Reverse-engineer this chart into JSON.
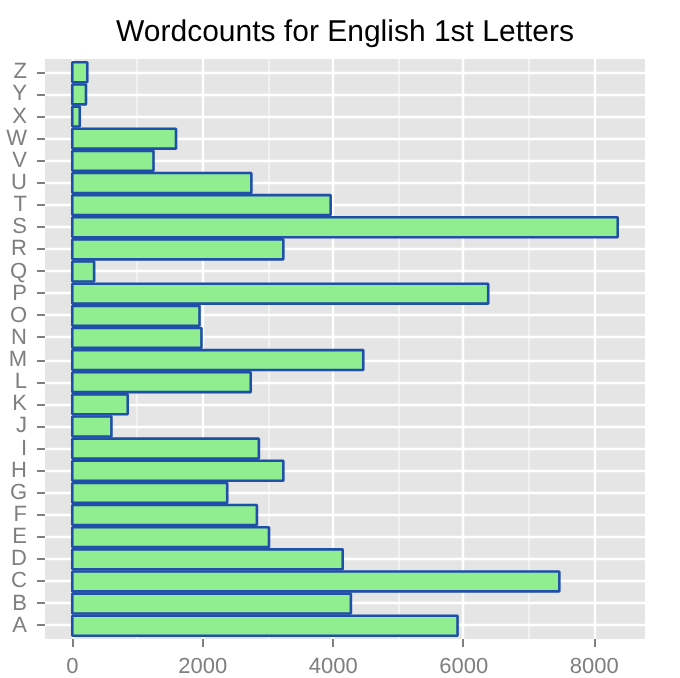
{
  "chart_data": {
    "type": "bar",
    "orientation": "horizontal",
    "title": "Wordcounts for English 1st Letters",
    "categories": [
      "Z",
      "Y",
      "X",
      "W",
      "V",
      "U",
      "T",
      "S",
      "R",
      "Q",
      "P",
      "O",
      "N",
      "M",
      "L",
      "K",
      "J",
      "I",
      "H",
      "G",
      "F",
      "E",
      "D",
      "C",
      "B",
      "A"
    ],
    "values": [
      230,
      210,
      115,
      1590,
      1245,
      2745,
      3960,
      8360,
      3235,
      335,
      6375,
      1950,
      1980,
      4460,
      2735,
      850,
      600,
      2860,
      3235,
      2375,
      2830,
      3015,
      4145,
      7465,
      4270,
      5905
    ],
    "color": "#90ee90",
    "xlim": [
      -418,
      8778
    ],
    "xticks": [
      0,
      2000,
      4000,
      6000,
      8000
    ],
    "grid": true
  }
}
